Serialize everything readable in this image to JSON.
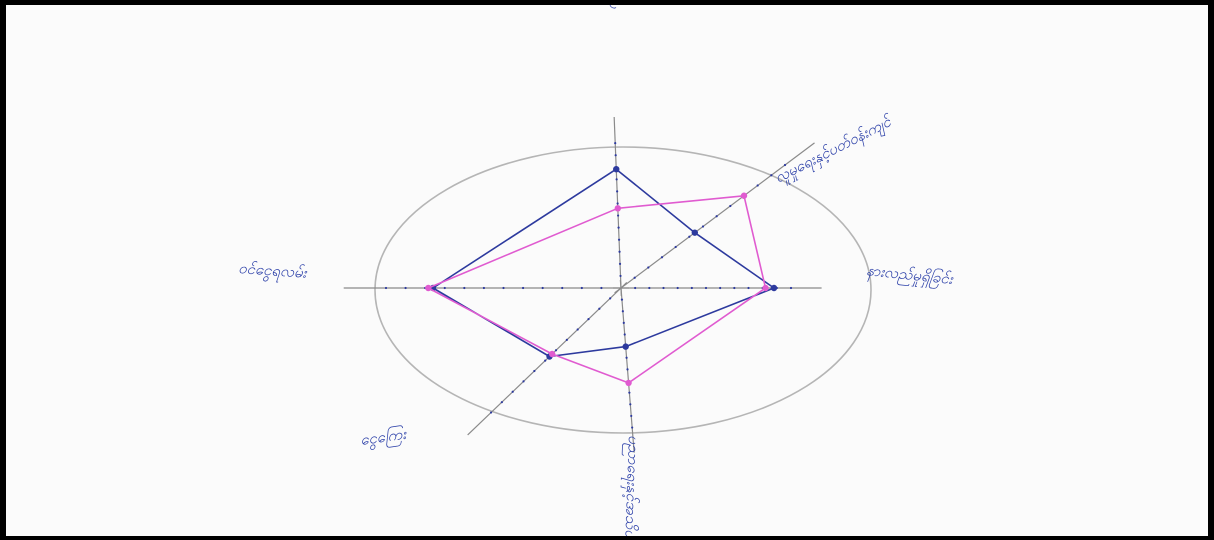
{
  "chart_data": {
    "type": "radar",
    "axes": [
      "ကျန်းမာရေးစောင့်ရှောက်မှု",
      "လူမှုရေးနှင့်ပတ်ဝန်းကျင်",
      "နားလည်မှုရှိခြင်း",
      "ပညာရေးနှင့်အသိပညာ",
      "ငွေကြေး",
      "ဝင်ငွေရလမ်း"
    ],
    "series": [
      {
        "color": "#2d3a9e",
        "values": [
          0.82,
          0.45,
          0.9,
          0.42,
          0.55,
          0.8
        ]
      },
      {
        "color": "#e05bd0",
        "values": [
          0.55,
          0.75,
          0.85,
          0.68,
          0.53,
          0.82
        ]
      }
    ],
    "range": [
      0,
      1
    ],
    "grid": false,
    "outer_circle": true,
    "tick_dots": true
  }
}
